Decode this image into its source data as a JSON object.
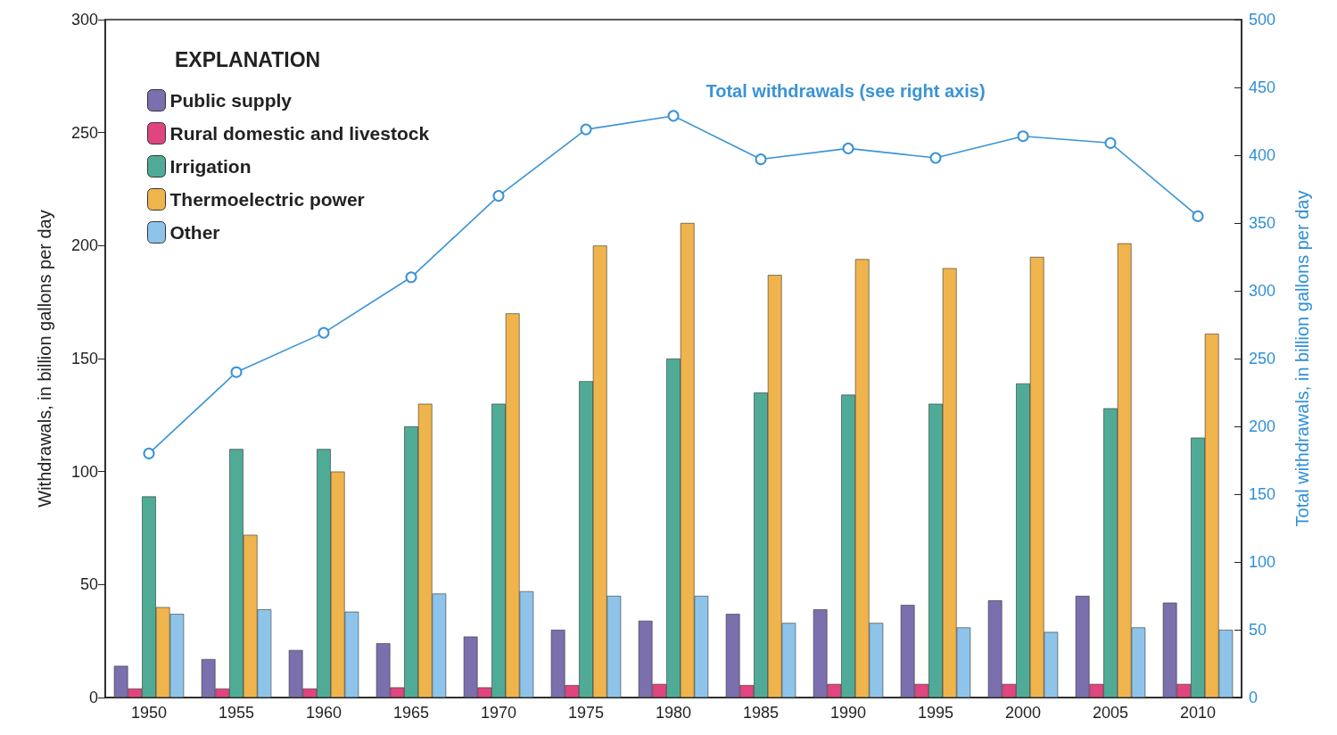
{
  "chart_data": {
    "type": "bar",
    "ylabel": "Withdrawals, in billion gallons per day",
    "y2label": "Total withdrawals, in billion gallons per day",
    "legend_title": "EXPLANATION",
    "categories": [
      "1950",
      "1955",
      "1960",
      "1965",
      "1970",
      "1975",
      "1980",
      "1985",
      "1990",
      "1995",
      "2000",
      "2005",
      "2010"
    ],
    "series": [
      {
        "name": "Public supply",
        "color": "#7b6fae",
        "values": [
          14,
          17,
          21,
          24,
          27,
          30,
          34,
          37,
          39,
          41,
          43,
          45,
          42
        ]
      },
      {
        "name": "Rural domestic and livestock",
        "color": "#e0457f",
        "values": [
          4,
          4,
          4,
          4.5,
          4.5,
          5.5,
          6,
          5.5,
          6,
          6,
          6,
          6,
          6
        ]
      },
      {
        "name": "Irrigation",
        "color": "#4fab96",
        "values": [
          89,
          110,
          110,
          120,
          130,
          140,
          150,
          135,
          134,
          130,
          139,
          128,
          115
        ]
      },
      {
        "name": "Thermoelectric power",
        "color": "#f0b44c",
        "values": [
          40,
          72,
          100,
          130,
          170,
          200,
          210,
          187,
          194,
          190,
          195,
          201,
          161
        ]
      },
      {
        "name": "Other",
        "color": "#8ec4ea",
        "values": [
          37,
          39,
          38,
          46,
          47,
          45,
          45,
          33,
          33,
          31,
          29,
          31,
          30
        ]
      },
      {
        "name": "Total withdrawals (see right axis)",
        "type": "line",
        "axis": "y2",
        "color": "#3a93d6",
        "marker": "circle",
        "values": [
          180,
          240,
          269,
          310,
          370,
          419,
          429,
          397,
          405,
          398,
          414,
          409,
          355
        ]
      }
    ],
    "ylim": [
      0,
      300
    ],
    "yticks": [
      0,
      50,
      100,
      150,
      200,
      250,
      300
    ],
    "y2lim": [
      0,
      500
    ],
    "y2ticks": [
      0,
      50,
      100,
      150,
      200,
      250,
      300,
      350,
      400,
      450,
      500
    ],
    "legend": "top left",
    "grid": false
  }
}
